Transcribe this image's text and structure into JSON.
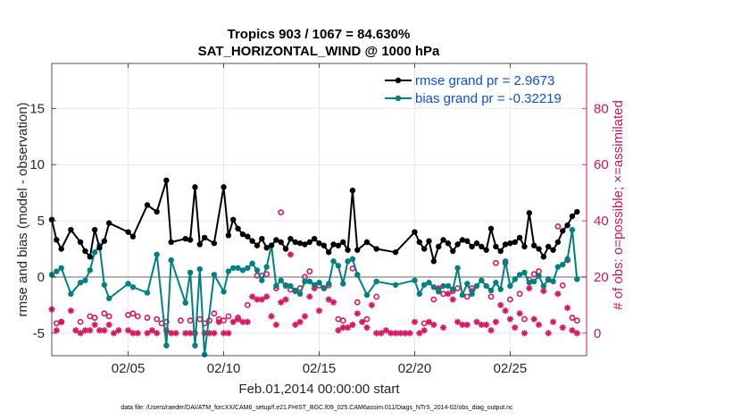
{
  "chart_data": {
    "type": "line",
    "title_line1": "Tropics 903 / 1067 = 84.630%",
    "title_line2": "SAT_HORIZONTAL_WIND @ 1000 hPa",
    "xlabel": "Feb.01,2014 00:00:00 start",
    "ylabel": "rmse and bias (model - observation)",
    "ylabel_right": "# of obs: o=possible; ×=assimilated",
    "xlim": [
      1,
      29
    ],
    "ylim": [
      -7,
      19
    ],
    "ylim_right": [
      -8,
      96
    ],
    "xticks": [
      5,
      10,
      15,
      20,
      25
    ],
    "xtick_labels": [
      "02/05",
      "02/10",
      "02/15",
      "02/20",
      "02/25"
    ],
    "yticks": [
      -5,
      0,
      5,
      10,
      15
    ],
    "yticks_right": [
      0,
      20,
      40,
      60,
      80
    ],
    "colors": {
      "rmse": "#000000",
      "bias": "#008080",
      "obs": "#d6175f",
      "legend_text": "#0b4fd9"
    },
    "legend": [
      {
        "name": "rmse grand pr = 2.9673",
        "series": "rmse"
      },
      {
        "name": "bias grand pr = -0.32219",
        "series": "bias"
      }
    ],
    "rmse": {
      "x": [
        1.0,
        1.25,
        1.5,
        2.0,
        2.5,
        2.75,
        3.0,
        3.25,
        3.5,
        3.75,
        4.0,
        5.0,
        5.25,
        6.0,
        6.5,
        7.0,
        7.25,
        8.0,
        8.25,
        8.5,
        8.75,
        9.0,
        9.5,
        10.0,
        10.25,
        10.5,
        10.75,
        11.0,
        11.25,
        11.5,
        11.75,
        12.0,
        12.25,
        12.5,
        12.75,
        13.0,
        13.25,
        13.5,
        13.75,
        14.0,
        14.25,
        14.5,
        14.75,
        15.0,
        15.25,
        15.5,
        15.75,
        16.0,
        16.25,
        16.5,
        16.75,
        17.0,
        17.5,
        18.0,
        19.0,
        20.0,
        20.25,
        20.5,
        20.75,
        21.0,
        21.25,
        21.5,
        21.75,
        22.0,
        22.25,
        22.5,
        22.75,
        23.0,
        23.25,
        23.5,
        23.75,
        24.0,
        24.25,
        24.5,
        24.75,
        25.0,
        25.25,
        25.5,
        25.75,
        26.0,
        26.25,
        26.5,
        26.75,
        27.0,
        27.25,
        27.5,
        27.75,
        28.0,
        28.25,
        28.5
      ],
      "y": [
        5.1,
        3.3,
        2.5,
        4.2,
        3.1,
        2.3,
        1.8,
        4.2,
        2.6,
        3.2,
        4.8,
        4.0,
        3.6,
        6.4,
        5.8,
        8.6,
        3.1,
        3.4,
        3.3,
        8.0,
        2.9,
        3.5,
        3.0,
        8.0,
        3.7,
        5.1,
        4.3,
        3.8,
        3.6,
        3.2,
        2.8,
        3.4,
        2.6,
        2.8,
        3.3,
        3.1,
        2.5,
        3.4,
        3.1,
        3.0,
        2.9,
        3.1,
        3.4,
        3.0,
        2.8,
        2.2,
        2.9,
        2.8,
        3.1,
        2.4,
        7.7,
        2.4,
        3.1,
        2.5,
        2.2,
        4.0,
        3.1,
        2.5,
        3.2,
        1.4,
        2.7,
        3.3,
        3.0,
        2.3,
        2.9,
        3.3,
        3.2,
        2.7,
        3.0,
        2.7,
        2.4,
        4.3,
        2.7,
        2.3,
        2.9,
        3.0,
        3.1,
        3.5,
        2.7,
        5.7,
        2.8,
        2.5,
        1.8,
        2.7,
        2.4,
        3.1,
        4.1,
        4.6,
        5.4,
        5.8
      ]
    },
    "bias": {
      "x": [
        1.0,
        1.25,
        1.5,
        2.0,
        2.5,
        2.75,
        3.0,
        3.25,
        3.5,
        3.75,
        4.0,
        5.0,
        5.25,
        6.0,
        6.5,
        7.0,
        7.25,
        8.0,
        8.25,
        8.5,
        8.75,
        9.0,
        9.5,
        10.0,
        10.25,
        10.5,
        10.75,
        11.0,
        11.25,
        11.5,
        11.75,
        12.0,
        12.25,
        12.5,
        12.75,
        13.0,
        13.25,
        13.5,
        13.75,
        14.0,
        14.25,
        14.5,
        14.75,
        15.0,
        15.25,
        15.5,
        15.75,
        16.0,
        16.25,
        16.5,
        16.75,
        17.0,
        17.5,
        18.0,
        19.0,
        20.0,
        20.25,
        20.5,
        20.75,
        21.0,
        21.25,
        21.5,
        21.75,
        22.0,
        22.25,
        22.5,
        22.75,
        23.0,
        23.25,
        23.5,
        23.75,
        24.0,
        24.25,
        24.5,
        24.75,
        25.0,
        25.25,
        25.5,
        25.75,
        26.0,
        26.25,
        26.5,
        26.75,
        27.0,
        27.25,
        27.5,
        27.75,
        28.0,
        28.25,
        28.5
      ],
      "y": [
        0.2,
        0.5,
        0.8,
        -1.5,
        -0.5,
        -0.3,
        0.6,
        2.2,
        2.8,
        -0.7,
        -1.9,
        -0.6,
        -0.9,
        -1.4,
        2.0,
        -6.1,
        1.5,
        -2.3,
        0.4,
        -6.1,
        0.7,
        -6.9,
        0.2,
        -1.3,
        0.5,
        0.8,
        0.8,
        0.6,
        0.8,
        1.2,
        0.6,
        -0.3,
        0.9,
        2.8,
        -0.8,
        -0.3,
        -0.8,
        -0.8,
        -1.2,
        -1.5,
        -0.4,
        -0.4,
        -0.7,
        -0.5,
        -1.0,
        -0.6,
        1.4,
        1.0,
        -0.6,
        1.4,
        1.6,
        0.2,
        -1.6,
        -0.4,
        -0.7,
        -0.3,
        -1.5,
        -0.7,
        -0.5,
        -0.9,
        -1.3,
        -0.8,
        -0.8,
        -1.1,
        0.8,
        -1.6,
        -0.6,
        -1.5,
        -0.8,
        -0.3,
        -0.8,
        -1.2,
        -0.5,
        -1.1,
        1.4,
        -0.8,
        -0.2,
        0.2,
        0.4,
        -0.5,
        -0.4,
        0.1,
        -0.8,
        -0.2,
        -0.4,
        0.9,
        1.1,
        1.6,
        4.2,
        -0.2
      ]
    },
    "obs_possible": {
      "x": [
        1.25,
        1.5,
        2.5,
        3.0,
        3.25,
        3.75,
        4.0,
        5.0,
        5.25,
        5.5,
        6.0,
        6.5,
        6.75,
        7.0,
        7.75,
        8.25,
        8.75,
        9.0,
        9.25,
        9.5,
        9.75,
        10.0,
        10.25,
        10.75,
        11.25,
        11.75,
        12.0,
        12.25,
        12.75,
        13.0,
        13.25,
        13.5,
        13.75,
        14.0,
        14.25,
        14.5,
        15.0,
        15.5,
        16.0,
        16.25,
        16.75,
        17.0,
        17.5,
        18.0,
        20.5,
        21.0,
        21.5,
        22.0,
        22.25,
        22.75,
        23.0,
        24.0,
        24.25,
        24.75,
        25.0,
        25.5,
        25.75,
        26.0,
        26.25,
        26.5,
        27.0,
        27.5,
        27.75,
        28.0,
        28.25,
        28.5
      ],
      "y": [
        3.5,
        4.0,
        4.0,
        6.0,
        5.5,
        7.0,
        6.0,
        6.5,
        7.0,
        6.0,
        5.5,
        5.0,
        3.5,
        4.0,
        4.5,
        4.5,
        5.0,
        3.5,
        4.5,
        7.0,
        5.0,
        4.5,
        6.0,
        5.5,
        10.0,
        20.5,
        20.5,
        21.0,
        16.0,
        43.0,
        17.0,
        15.5,
        15.0,
        16.0,
        20.0,
        22.0,
        17.0,
        17.0,
        5.0,
        4.5,
        23.0,
        11.0,
        5.0,
        13.0,
        3.5,
        12.0,
        14.0,
        15.0,
        16.0,
        13.0,
        16.0,
        13.0,
        25.0,
        25.0,
        12.0,
        14.0,
        5.0,
        19.0,
        21.0,
        22.0,
        19.0,
        38.0,
        17.0,
        26.0,
        5.5,
        4.5
      ]
    },
    "obs_assimilated": {
      "x": [
        1.0,
        1.25,
        1.5,
        2.0,
        2.25,
        2.5,
        2.75,
        3.0,
        3.25,
        3.5,
        3.75,
        4.0,
        4.25,
        4.5,
        5.0,
        5.25,
        5.5,
        6.0,
        6.25,
        6.5,
        7.0,
        7.25,
        7.5,
        8.0,
        8.25,
        8.5,
        9.0,
        9.25,
        9.5,
        9.75,
        10.0,
        10.25,
        10.5,
        10.75,
        11.0,
        11.25,
        11.5,
        11.75,
        12.0,
        12.25,
        12.5,
        12.75,
        13.0,
        13.25,
        13.5,
        13.75,
        14.0,
        14.25,
        14.5,
        14.75,
        15.0,
        15.25,
        15.5,
        15.75,
        16.0,
        16.25,
        16.5,
        16.75,
        17.0,
        17.25,
        17.5,
        17.75,
        18.0,
        18.25,
        18.5,
        18.75,
        19.0,
        19.25,
        19.5,
        19.75,
        20.0,
        20.25,
        20.5,
        20.75,
        21.0,
        21.25,
        21.5,
        21.75,
        22.0,
        22.25,
        22.5,
        22.75,
        23.0,
        23.25,
        23.5,
        23.75,
        24.0,
        24.25,
        24.5,
        24.75,
        25.0,
        25.25,
        25.5,
        25.75,
        26.0,
        26.25,
        26.5,
        26.75,
        27.0,
        27.25,
        27.5,
        27.75,
        28.0,
        28.25,
        28.5
      ],
      "y": [
        8.5,
        1.0,
        4.0,
        8.0,
        1.0,
        0.0,
        1.0,
        1.0,
        3.0,
        1.0,
        1.0,
        3.0,
        0.0,
        1.0,
        1.0,
        0.0,
        0.0,
        0.0,
        1.0,
        0.0,
        1.0,
        0.0,
        0.0,
        0.0,
        0.0,
        0.0,
        0.0,
        0.0,
        0.0,
        4.0,
        0.0,
        0.0,
        4.0,
        5.0,
        4.0,
        4.0,
        13.0,
        12.0,
        12.0,
        13.0,
        6.0,
        3.0,
        11.0,
        12.0,
        28.0,
        3.0,
        4.0,
        6.0,
        13.0,
        16.0,
        8.0,
        16.0,
        12.0,
        11.0,
        1.0,
        2.0,
        2.0,
        3.0,
        7.0,
        4.0,
        2.0,
        10.0,
        0.0,
        0.0,
        1.0,
        0.0,
        0.0,
        0.0,
        0.0,
        0.0,
        4.0,
        0.0,
        1.0,
        4.0,
        3.0,
        16.0,
        2.0,
        14.0,
        12.0,
        4.0,
        3.0,
        3.0,
        15.0,
        4.0,
        3.0,
        3.0,
        1.0,
        4.0,
        10.0,
        8.0,
        5.0,
        2.0,
        7.0,
        0.0,
        16.0,
        5.0,
        3.0,
        15.0,
        0.0,
        4.0,
        14.0,
        2.0,
        9.0,
        1.0,
        0.0
      ]
    }
  },
  "footer_text": "data file: /Users/raeder/DAI/ATM_forcXX/CAM6_setup/f.e21.FHIST_BGC.f09_025.CAM6assim.011/Diags_NTrS_2014-02/obs_diag_output.nc"
}
